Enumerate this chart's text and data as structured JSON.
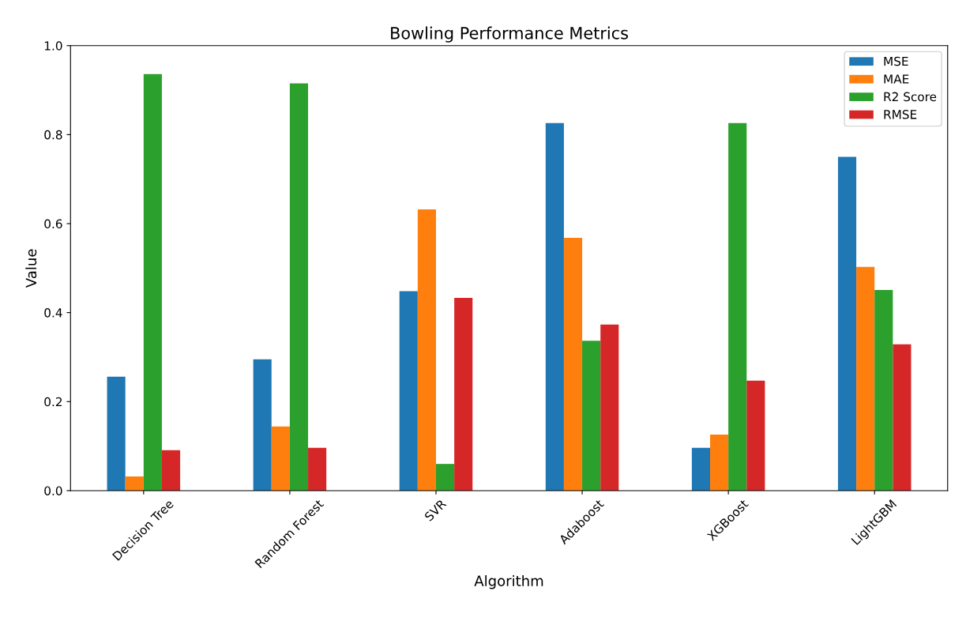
{
  "chart_data": {
    "type": "bar",
    "title": "Bowling Performance Metrics",
    "xlabel": "Algorithm",
    "ylabel": "Value",
    "categories": [
      "Decision Tree",
      "Random Forest",
      "SVR",
      "Adaboost",
      "XGBoost",
      "LightGBM"
    ],
    "series": [
      {
        "name": "MSE",
        "color": "#1f77b4",
        "values": [
          0.256,
          0.295,
          0.448,
          0.826,
          0.096,
          0.75
        ]
      },
      {
        "name": "MAE",
        "color": "#ff7f0e",
        "values": [
          0.032,
          0.144,
          0.632,
          0.568,
          0.126,
          0.503
        ]
      },
      {
        "name": "R2 Score",
        "color": "#2ca02c",
        "values": [
          0.936,
          0.915,
          0.06,
          0.337,
          0.826,
          0.451
        ]
      },
      {
        "name": "RMSE",
        "color": "#d62728",
        "values": [
          0.091,
          0.096,
          0.433,
          0.373,
          0.247,
          0.329
        ]
      }
    ],
    "ylim": [
      0,
      1.0
    ],
    "yticks": [
      {
        "value": 0,
        "label": "0.0"
      },
      {
        "value": 0.2,
        "label": "0.2"
      },
      {
        "value": 0.4,
        "label": "0.4"
      },
      {
        "value": 0.6,
        "label": "0.6"
      },
      {
        "value": 0.8,
        "label": "0.8"
      },
      {
        "value": 1.0,
        "label": "1.0"
      }
    ],
    "legend": "top right",
    "grid": false
  }
}
